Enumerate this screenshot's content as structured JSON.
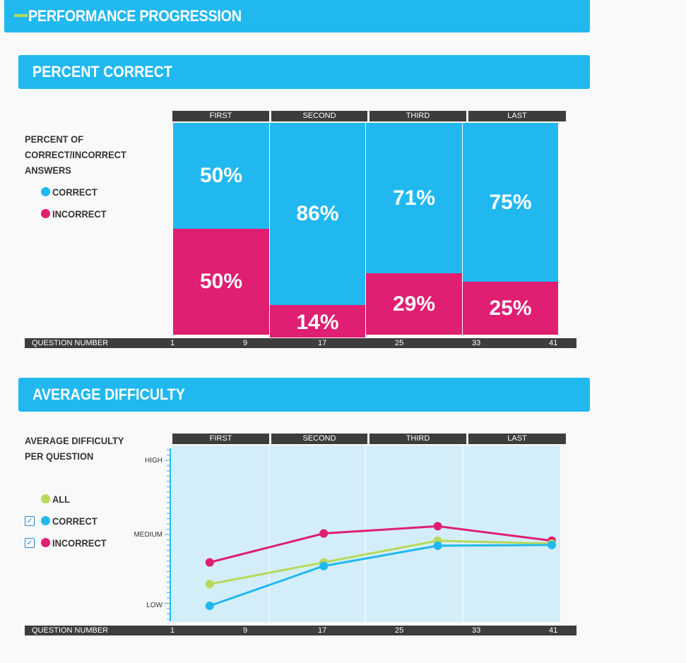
{
  "header": {
    "title": "PERFORMANCE PROGRESSION"
  },
  "section1": {
    "title": "PERCENT CORRECT",
    "label_lines": [
      "PERCENT OF",
      "CORRECT/INCORRECT",
      "ANSWERS"
    ],
    "legend": [
      {
        "label": "CORRECT",
        "color": "#21b8f0"
      },
      {
        "label": "INCORRECT",
        "color": "#e01e72"
      }
    ]
  },
  "section2": {
    "title": "AVERAGE DIFFICULTY",
    "label_lines": [
      "AVERAGE DIFFICULTY",
      "PER QUESTION"
    ],
    "legend": [
      {
        "label": "ALL",
        "color": "#b8d95a",
        "checkbox": false
      },
      {
        "label": "CORRECT",
        "color": "#21b8f0",
        "checkbox": true
      },
      {
        "label": "INCORRECT",
        "color": "#e01e72",
        "checkbox": true
      }
    ]
  },
  "phases": [
    "FIRST",
    "SECOND",
    "THIRD",
    "LAST"
  ],
  "axis": {
    "label": "QUESTION NUMBER",
    "ticks": [
      "1",
      "9",
      "17",
      "25",
      "33",
      "41"
    ]
  },
  "chart_data": [
    {
      "type": "bar",
      "stacked": true,
      "categories": [
        "FIRST",
        "SECOND",
        "THIRD",
        "LAST"
      ],
      "series": [
        {
          "name": "CORRECT",
          "values": [
            50,
            86,
            71,
            75
          ],
          "labels": [
            "50%",
            "86%",
            "71%",
            "75%"
          ],
          "color": "#21b8f0"
        },
        {
          "name": "INCORRECT",
          "values": [
            50,
            14,
            29,
            25
          ],
          "labels": [
            "50%",
            "14%",
            "29%",
            "25%"
          ],
          "color": "#e01e72"
        }
      ],
      "ylim": [
        0,
        100
      ]
    },
    {
      "type": "line",
      "x": [
        5,
        17,
        29,
        41
      ],
      "xlim": [
        1,
        41
      ],
      "yticks": [
        "LOW",
        "MEDIUM",
        "HIGH"
      ],
      "ylim": [
        0,
        2
      ],
      "series": [
        {
          "name": "INCORRECT",
          "color": "#e01e72",
          "values": [
            0.6,
            1.0,
            1.1,
            0.9
          ]
        },
        {
          "name": "ALL",
          "color": "#b8d95a",
          "values": [
            0.3,
            0.6,
            0.9,
            0.86
          ]
        },
        {
          "name": "CORRECT",
          "color": "#21b8f0",
          "values": [
            0.0,
            0.55,
            0.83,
            0.84
          ]
        }
      ]
    }
  ]
}
